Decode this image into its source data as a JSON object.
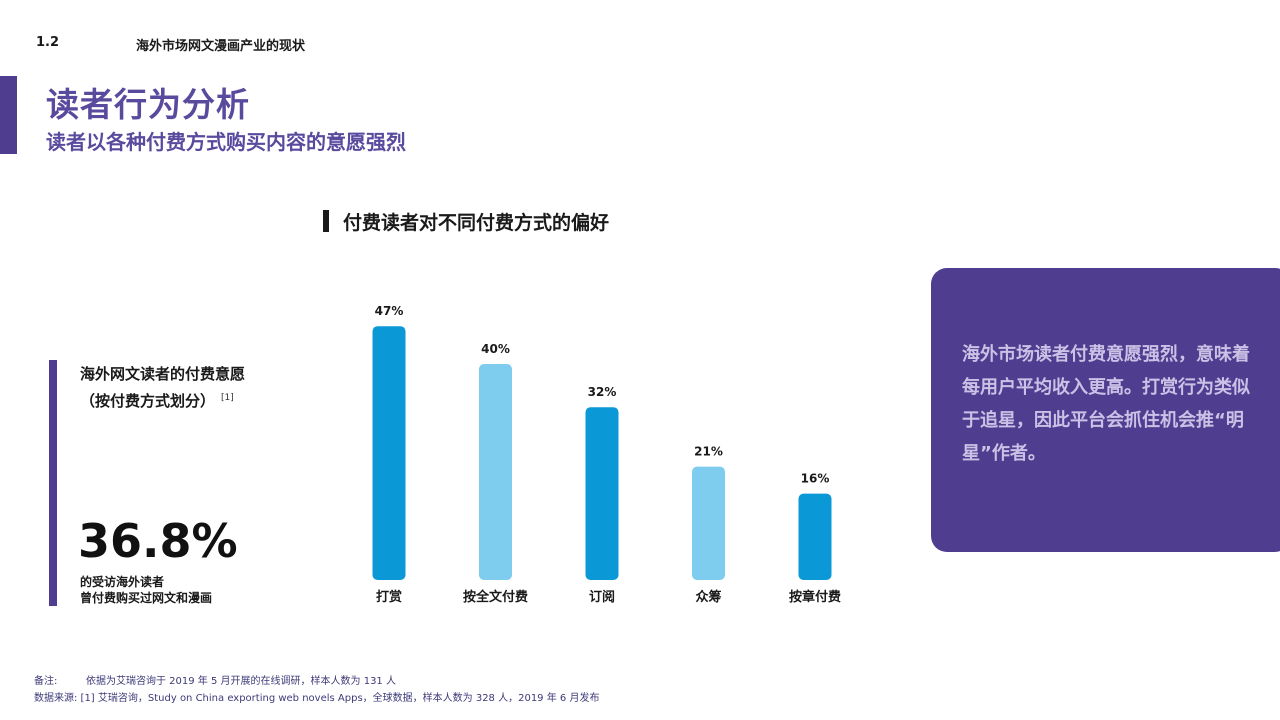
{
  "header": {
    "section_number": "1.2",
    "section_title": "海外市场网文漫画产业的现状"
  },
  "page": {
    "title": "读者行为分析",
    "subtitle": "读者以各种付费方式购买内容的意愿强烈"
  },
  "chart_title": "付费读者对不同付费方式的偏好",
  "left_panel": {
    "heading_line1": "海外网文读者的付费意愿",
    "heading_line2": "（按付费方式划分）",
    "ref": "[1]",
    "stat": "36.8%",
    "caption_line1": "的受访海外读者",
    "caption_line2": "曾付费购买过网文和漫画"
  },
  "callout": {
    "text": "海外市场读者付费意愿强烈，意味着每用户平均收入更高。打赏行为类似于追星，因此平台会抓住机会推“明星”作者。"
  },
  "footnotes": {
    "note_label": "备注:",
    "note_text": "依据为艾瑞咨询于 2019 年 5 月开展的在线调研，样本人数为 131 人",
    "source_text": "数据来源: [1] 艾瑞咨询，Study on China exporting web novels Apps，全球数据，样本人数为 328 人，2019 年 6 月发布"
  },
  "chart_data": {
    "type": "bar",
    "categories": [
      "打赏",
      "按全文付费",
      "订阅",
      "众筹",
      "按章付费"
    ],
    "values": [
      47,
      40,
      32,
      21,
      16
    ],
    "value_labels": [
      "47%",
      "40%",
      "32%",
      "21%",
      "16%"
    ],
    "unit": "%",
    "ylim": [
      0,
      50
    ],
    "grid": false,
    "colors": [
      "#0a98d6",
      "#7ecdef",
      "#0a98d6",
      "#7ecdef",
      "#0a98d6"
    ]
  }
}
